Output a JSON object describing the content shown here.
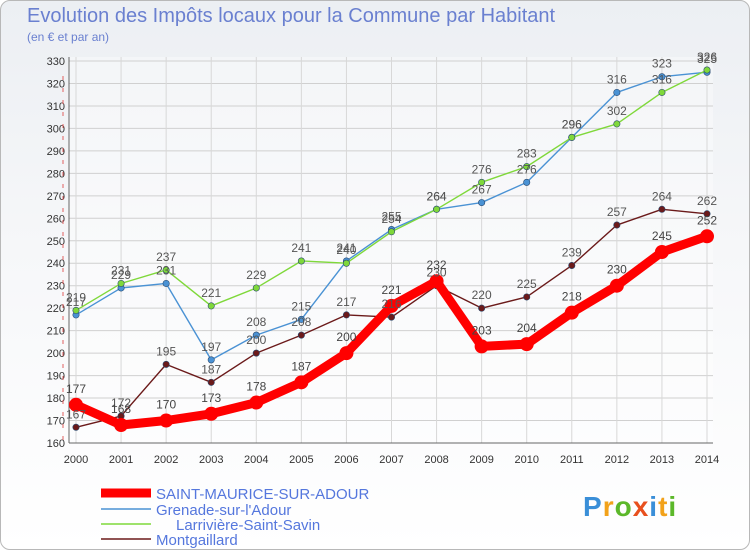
{
  "header": {
    "title": "Evolution des Impôts locaux pour la Commune par Habitant",
    "subtitle": "(en € et par an)"
  },
  "brand": {
    "p": "P",
    "r": "r",
    "o": "o",
    "x": "x",
    "i": "i",
    "t": "t",
    "i2": "i"
  },
  "chart_data": {
    "type": "line",
    "title": "Evolution des Impôts locaux pour la Commune par Habitant",
    "ylabel": "(en € et par an)",
    "xlabel": "",
    "x": [
      "2000",
      "2001",
      "2002",
      "2003",
      "2004",
      "2005",
      "2006",
      "2007",
      "2008",
      "2009",
      "2010",
      "2011",
      "2012",
      "2013",
      "2014"
    ],
    "ylim": [
      160,
      330
    ],
    "yticks": [
      160,
      170,
      180,
      190,
      200,
      210,
      220,
      230,
      240,
      250,
      260,
      270,
      280,
      290,
      300,
      310,
      320,
      330
    ],
    "legend_position": "bottom-left",
    "series": [
      {
        "name": "SAINT-MAURICE-SUR-ADOUR",
        "color": "#ff0000",
        "labelColor": "#444444",
        "values": [
          177,
          168,
          170,
          173,
          178,
          187,
          200,
          221,
          232,
          203,
          204,
          218,
          230,
          245,
          252
        ]
      },
      {
        "name": "Grenade-sur-l'Adour",
        "color": "#4a92d4",
        "labelColor": "#555555",
        "values": [
          217,
          229,
          231,
          197,
          208,
          215,
          241,
          255,
          264,
          267,
          276,
          296,
          316,
          323,
          325
        ]
      },
      {
        "name": "Larrivière-Saint-Savin",
        "color": "#7fd83a",
        "labelColor": "#555555",
        "values": [
          219,
          231,
          237,
          221,
          229,
          241,
          240,
          254,
          264,
          276,
          283,
          296,
          302,
          316,
          326
        ]
      },
      {
        "name": "Montgaillard",
        "color": "#6b1a1a",
        "labelColor": "#555555",
        "values": [
          167,
          172,
          195,
          187,
          200,
          208,
          217,
          216,
          230,
          220,
          225,
          239,
          257,
          264,
          262
        ]
      }
    ]
  }
}
